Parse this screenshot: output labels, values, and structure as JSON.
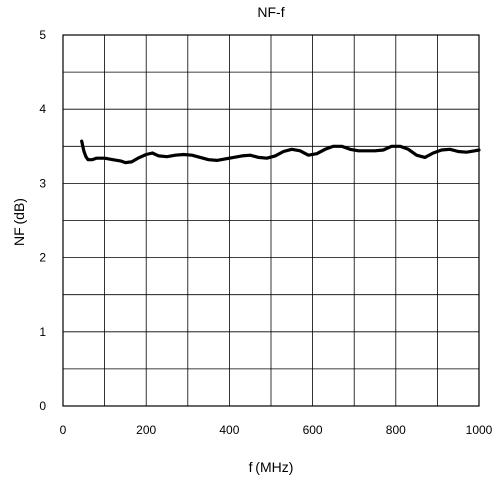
{
  "chart_data": {
    "type": "line",
    "title": "NF-f",
    "xlabel": "f (MHz)",
    "ylabel": "NF (dB)",
    "xlim": [
      0,
      1000
    ],
    "ylim": [
      0,
      5
    ],
    "x_ticks": [
      0,
      200,
      400,
      600,
      800,
      1000
    ],
    "y_ticks": [
      0,
      1,
      2,
      3,
      4,
      5
    ],
    "x_tick_labels": [
      "0",
      "200",
      "400",
      "600",
      "800",
      "1000"
    ],
    "y_tick_labels": [
      "0",
      "1",
      "2",
      "3",
      "4",
      "5"
    ],
    "grid": true,
    "legend": "none",
    "line_color": "#000000",
    "series": [
      {
        "x": [
          45,
          50,
          55,
          60,
          70,
          80,
          100,
          120,
          140,
          150,
          165,
          180,
          200,
          215,
          230,
          250,
          270,
          290,
          310,
          330,
          350,
          370,
          390,
          410,
          430,
          450,
          470,
          490,
          510,
          530,
          550,
          570,
          590,
          610,
          630,
          650,
          670,
          690,
          710,
          730,
          750,
          770,
          790,
          810,
          830,
          850,
          870,
          890,
          910,
          930,
          950,
          970,
          990,
          1000
        ],
        "y": [
          3.57,
          3.44,
          3.36,
          3.32,
          3.32,
          3.34,
          3.34,
          3.32,
          3.3,
          3.28,
          3.29,
          3.34,
          3.39,
          3.41,
          3.37,
          3.36,
          3.38,
          3.39,
          3.38,
          3.35,
          3.32,
          3.31,
          3.33,
          3.35,
          3.37,
          3.38,
          3.35,
          3.34,
          3.37,
          3.43,
          3.46,
          3.44,
          3.38,
          3.4,
          3.46,
          3.5,
          3.5,
          3.46,
          3.44,
          3.44,
          3.44,
          3.45,
          3.5,
          3.5,
          3.46,
          3.38,
          3.35,
          3.41,
          3.45,
          3.46,
          3.43,
          3.42,
          3.44,
          3.45
        ]
      }
    ]
  }
}
